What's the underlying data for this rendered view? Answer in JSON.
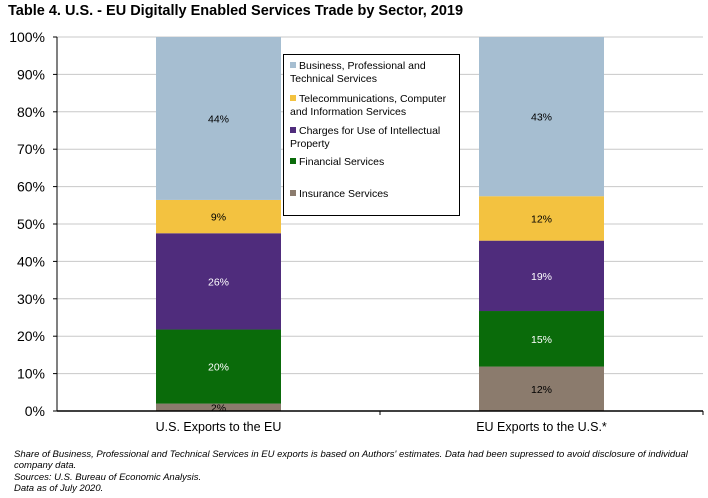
{
  "chart_data": {
    "type": "bar",
    "stacked": true,
    "title": "Table 4. U.S. - EU Digitally Enabled Services Trade by Sector, 2019",
    "categories": [
      "U.S. Exports to the EU",
      "EU Exports to the U.S.*"
    ],
    "series": [
      {
        "name": "Insurance Services",
        "color": "#8b7b6d",
        "values": [
          2,
          12
        ],
        "labels": [
          "2%",
          "12%"
        ]
      },
      {
        "name": "Financial Services",
        "color": "#0a6b0a",
        "values": [
          20,
          15
        ],
        "labels": [
          "20%",
          "15%"
        ]
      },
      {
        "name": "Charges for Use of Intellectual Property",
        "color": "#4f2c7c",
        "values": [
          26,
          19
        ],
        "labels": [
          "26%",
          "19%"
        ]
      },
      {
        "name": "Telecommunications, Computer and Information Services",
        "color": "#f3c240",
        "values": [
          9,
          12
        ],
        "labels": [
          "9%",
          "12%"
        ]
      },
      {
        "name": "Business, Professional and Technical Services",
        "color": "#a6bed1",
        "values": [
          44,
          43
        ],
        "labels": [
          "44%",
          "43%"
        ]
      }
    ],
    "yticks": [
      "0%",
      "10%",
      "20%",
      "30%",
      "40%",
      "50%",
      "60%",
      "70%",
      "80%",
      "90%",
      "100%"
    ],
    "ylim": [
      0,
      100
    ],
    "grid": true,
    "legend_position": "top-center",
    "legend_order": [
      "Business, Professional and Technical Services",
      "Telecommunications, Computer and Information Services",
      "Charges for Use of Intellectual Property",
      "Financial Services",
      "Insurance Services"
    ]
  },
  "notes": [
    "Share of Business, Professional and Technical Services in EU exports is  based on Authors' estimates. Data had been supressed to avoid disclosure of individual company data.",
    "Sources: U.S. Bureau of Economic Analysis.",
    "Data as of July 2020."
  ]
}
